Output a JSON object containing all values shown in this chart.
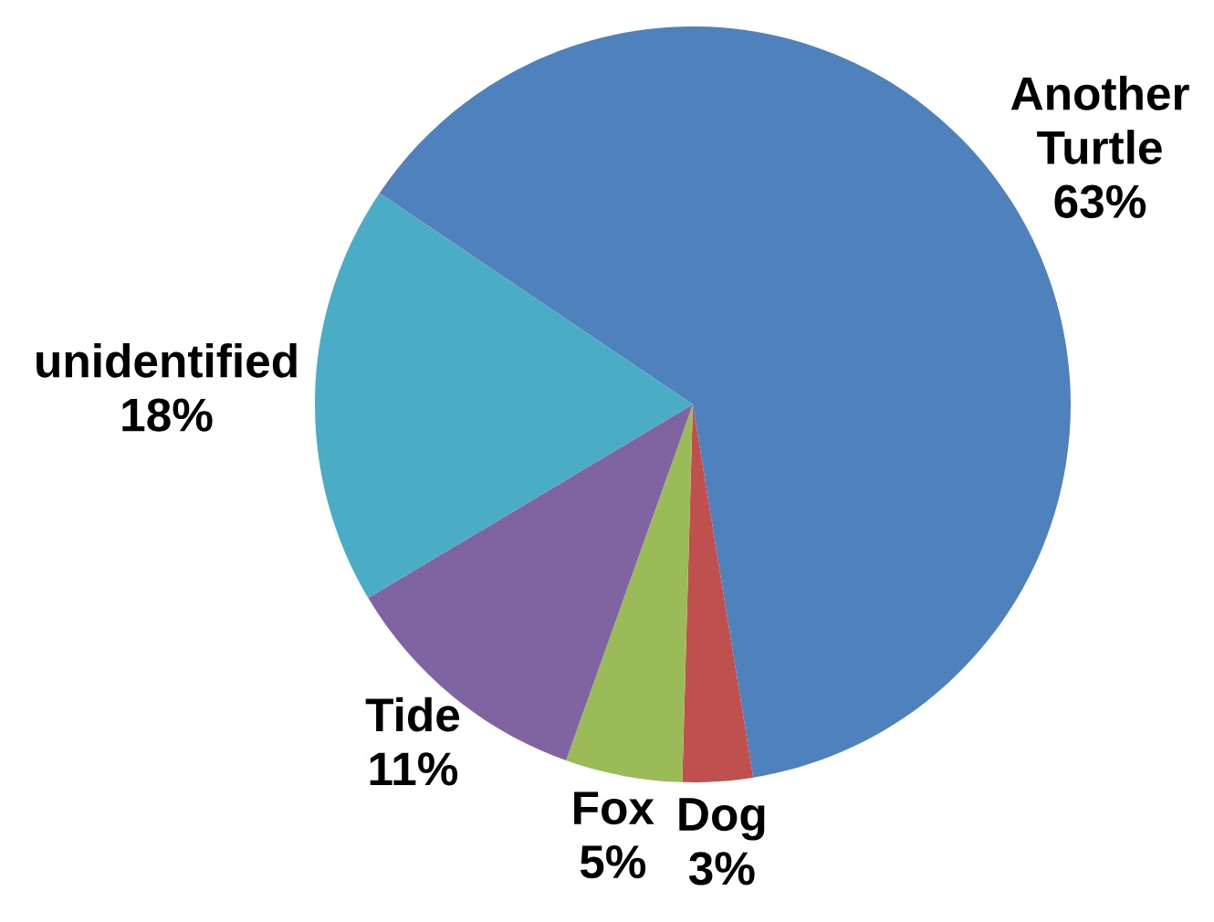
{
  "chart_data": {
    "type": "pie",
    "categories": [
      "Another Turtle",
      "Dog",
      "Fox",
      "Tide",
      "unidentified"
    ],
    "values": [
      63,
      3,
      5,
      11,
      18
    ],
    "colors": [
      "#4f81bd",
      "#c0504d",
      "#9bbb59",
      "#8064a2",
      "#4bacc6"
    ],
    "value_labels": [
      "63%",
      "3%",
      "5%",
      "11%",
      "18%"
    ]
  }
}
